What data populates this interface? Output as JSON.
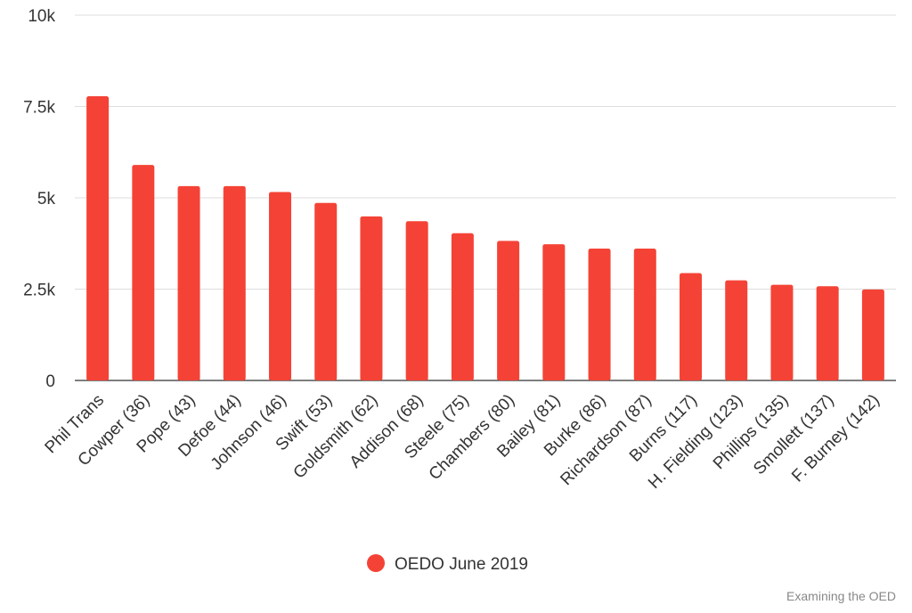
{
  "chart_data": {
    "type": "bar",
    "categories": [
      "Phil Trans",
      "Cowper (36)",
      "Pope (43)",
      "Defoe (44)",
      "Johnson (46)",
      "Swift (53)",
      "Goldsmith (62)",
      "Addison (68)",
      "Steele (75)",
      "Chambers (80)",
      "Bailey (81)",
      "Burke (86)",
      "Richardson (87)",
      "Burns (117)",
      "H. Fielding (123)",
      "Phillips (135)",
      "Smollett (137)",
      "F. Burney (142)"
    ],
    "series": [
      {
        "name": "OEDO June 2019",
        "color": "#f44336",
        "values": [
          7780,
          5900,
          5320,
          5320,
          5160,
          4860,
          4490,
          4360,
          4030,
          3820,
          3730,
          3610,
          3610,
          2940,
          2740,
          2620,
          2580,
          2490
        ]
      }
    ],
    "ylim": [
      0,
      10000
    ],
    "yticks": [
      0,
      2500,
      5000,
      7500,
      10000
    ],
    "ytick_labels": [
      "0",
      "2.5k",
      "5k",
      "7.5k",
      "10k"
    ],
    "grid": true,
    "legend_position": "bottom",
    "xlabel": "",
    "ylabel": ""
  },
  "credit": "Examining the OED"
}
